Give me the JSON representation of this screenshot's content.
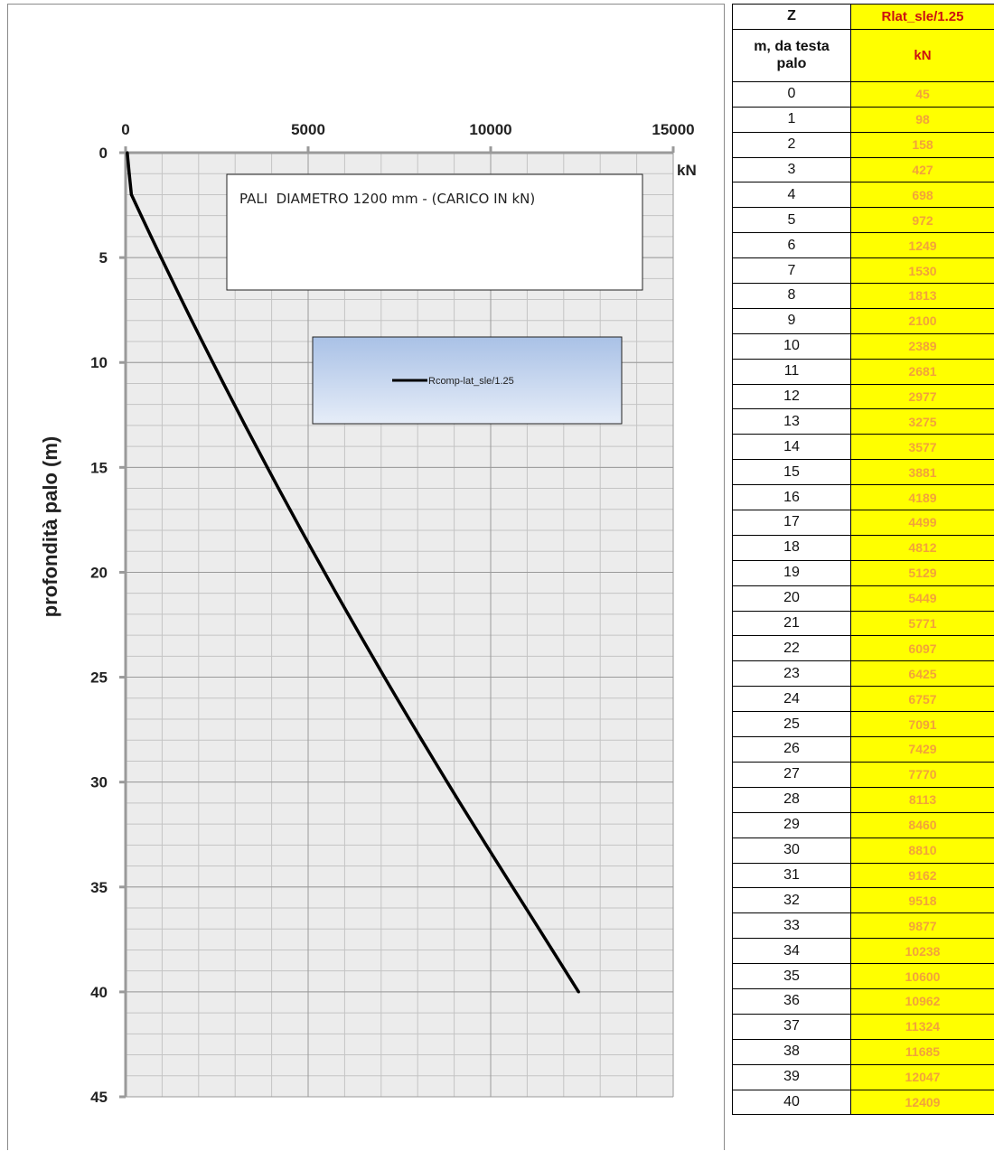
{
  "chart_data": {
    "type": "line",
    "ylabel": "profondità palo (m)",
    "xunit": "kN",
    "xlim": [
      0,
      15000
    ],
    "ylim": [
      0,
      45
    ],
    "y_inverted": true,
    "x_axis_position": "top",
    "x_ticks": [
      0,
      5000,
      10000,
      15000
    ],
    "y_ticks": [
      0,
      5,
      10,
      15,
      20,
      25,
      30,
      35,
      40,
      45
    ],
    "grid": true,
    "annotation": "PALI  DIAMETRO 1200 mm - (CARICO IN kN)",
    "legend_position": "center",
    "series": [
      {
        "name": "Rcomp-lat_sle/1.25",
        "color": "#000000",
        "x": [
          45,
          98,
          158,
          427,
          698,
          972,
          1249,
          1530,
          1813,
          2100,
          2389,
          2681,
          2977,
          3275,
          3577,
          3881,
          4189,
          4499,
          4812,
          5129,
          5449,
          5771,
          6097,
          6425,
          6757,
          7091,
          7429,
          7770,
          8113,
          8460,
          8810,
          9162,
          9518,
          9877,
          10238,
          10600,
          10962,
          11324,
          11685,
          12047,
          12409
        ],
        "y": [
          0,
          1,
          2,
          3,
          4,
          5,
          6,
          7,
          8,
          9,
          10,
          11,
          12,
          13,
          14,
          15,
          16,
          17,
          18,
          19,
          20,
          21,
          22,
          23,
          24,
          25,
          26,
          27,
          28,
          29,
          30,
          31,
          32,
          33,
          34,
          35,
          36,
          37,
          38,
          39,
          40
        ]
      }
    ]
  },
  "table": {
    "header": {
      "col1": "Z",
      "col2": "Rlat_sle/1.25"
    },
    "units": {
      "col1_line1": "m, da testa",
      "col1_line2": "palo",
      "col2": "kN"
    },
    "rows": [
      {
        "z": "0",
        "v": "45"
      },
      {
        "z": "1",
        "v": "98"
      },
      {
        "z": "2",
        "v": "158"
      },
      {
        "z": "3",
        "v": "427"
      },
      {
        "z": "4",
        "v": "698"
      },
      {
        "z": "5",
        "v": "972"
      },
      {
        "z": "6",
        "v": "1249"
      },
      {
        "z": "7",
        "v": "1530"
      },
      {
        "z": "8",
        "v": "1813"
      },
      {
        "z": "9",
        "v": "2100"
      },
      {
        "z": "10",
        "v": "2389"
      },
      {
        "z": "11",
        "v": "2681"
      },
      {
        "z": "12",
        "v": "2977"
      },
      {
        "z": "13",
        "v": "3275"
      },
      {
        "z": "14",
        "v": "3577"
      },
      {
        "z": "15",
        "v": "3881"
      },
      {
        "z": "16",
        "v": "4189"
      },
      {
        "z": "17",
        "v": "4499"
      },
      {
        "z": "18",
        "v": "4812"
      },
      {
        "z": "19",
        "v": "5129"
      },
      {
        "z": "20",
        "v": "5449"
      },
      {
        "z": "21",
        "v": "5771"
      },
      {
        "z": "22",
        "v": "6097"
      },
      {
        "z": "23",
        "v": "6425"
      },
      {
        "z": "24",
        "v": "6757"
      },
      {
        "z": "25",
        "v": "7091"
      },
      {
        "z": "26",
        "v": "7429"
      },
      {
        "z": "27",
        "v": "7770"
      },
      {
        "z": "28",
        "v": "8113"
      },
      {
        "z": "29",
        "v": "8460"
      },
      {
        "z": "30",
        "v": "8810"
      },
      {
        "z": "31",
        "v": "9162"
      },
      {
        "z": "32",
        "v": "9518"
      },
      {
        "z": "33",
        "v": "9877"
      },
      {
        "z": "34",
        "v": "10238"
      },
      {
        "z": "35",
        "v": "10600"
      },
      {
        "z": "36",
        "v": "10962"
      },
      {
        "z": "37",
        "v": "11324"
      },
      {
        "z": "38",
        "v": "11685"
      },
      {
        "z": "39",
        "v": "12047"
      },
      {
        "z": "40",
        "v": "12409"
      }
    ]
  }
}
